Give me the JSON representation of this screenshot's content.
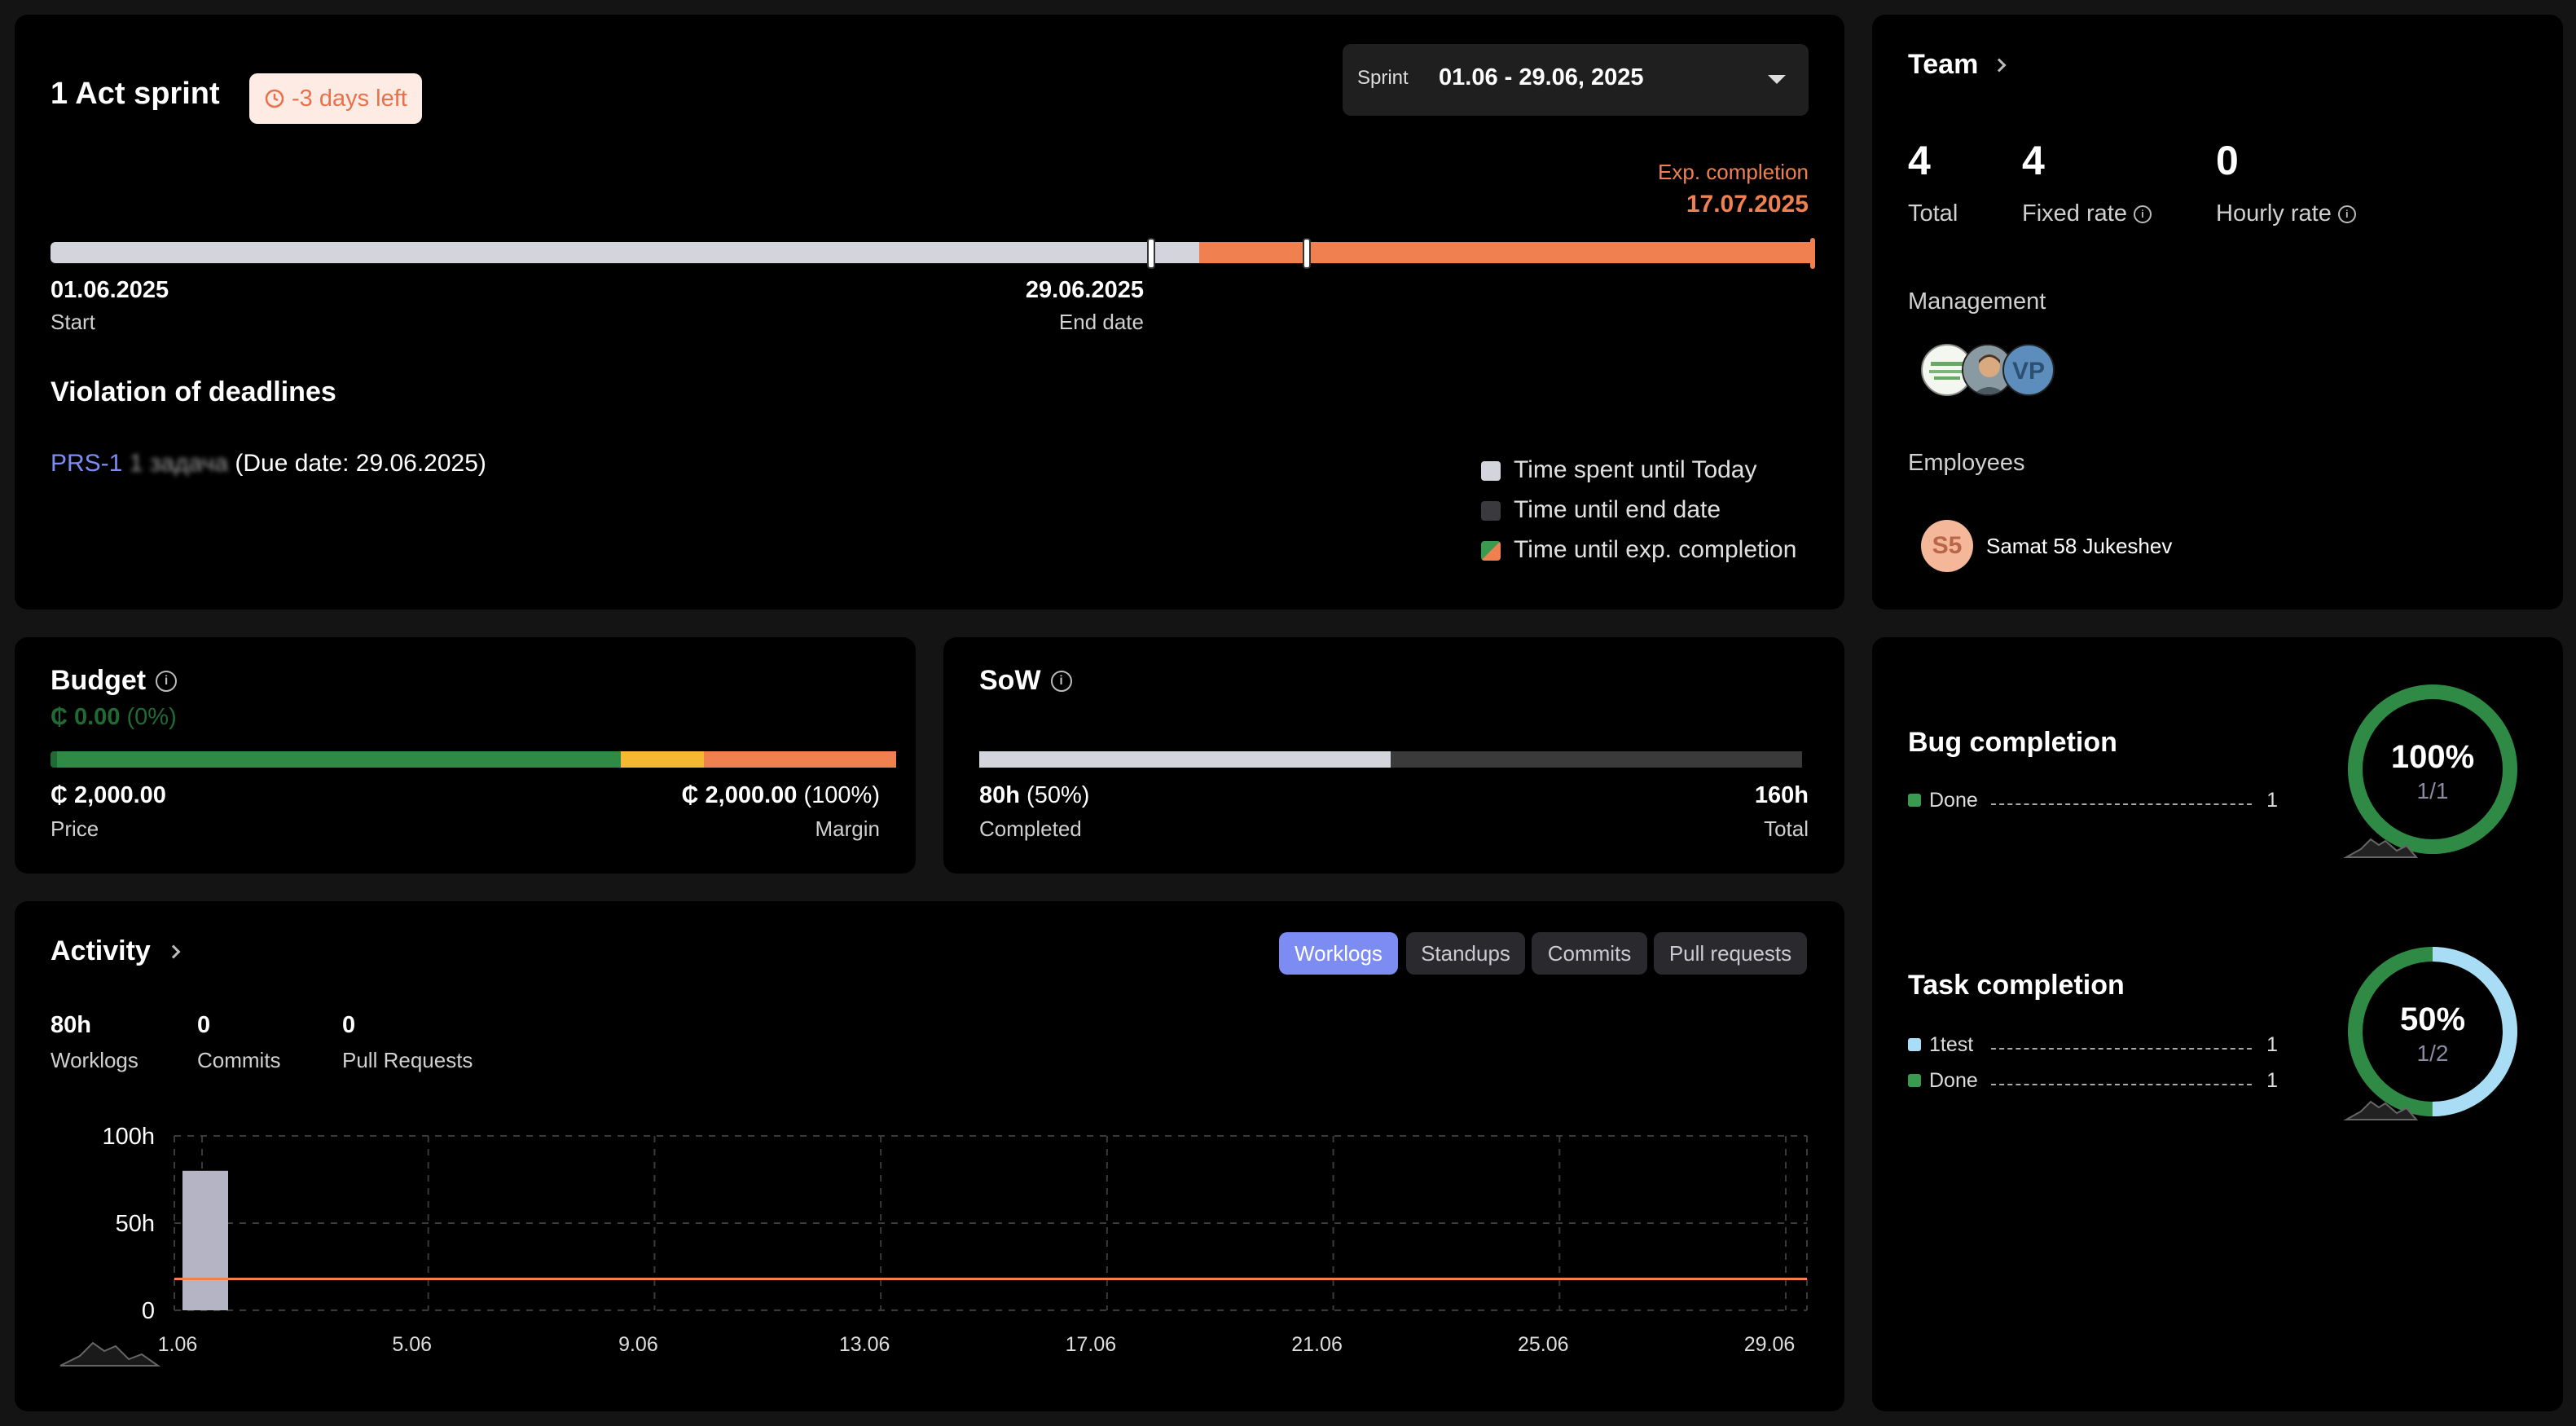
{
  "sprint": {
    "title": "1 Act sprint",
    "days_left_badge": "-3 days left",
    "selector_label": "Sprint",
    "selector_value": "01.06 - 29.06, 2025",
    "exp_completion_label": "Exp. completion",
    "exp_completion_date": "17.07.2025",
    "start_date": "01.06.2025",
    "start_label": "Start",
    "end_date": "29.06.2025",
    "end_label": "End date",
    "violations_title": "Violation of deadlines",
    "violation_key": "PRS-1",
    "violation_name": "1 задача",
    "violation_due": "(Due date: 29.06.2025)",
    "legend": [
      "Time spent until Today",
      "Time until end date",
      "Time until exp. completion"
    ],
    "colors": {
      "spent": "#d4d4dc",
      "remaining": "#3a3a3e",
      "overdue": "#f0804f",
      "badge_bg": "#fdebe4",
      "badge_text": "#e8704a"
    }
  },
  "team": {
    "title": "Team",
    "total": "4",
    "total_label": "Total",
    "fixed": "4",
    "fixed_label": "Fixed rate",
    "hourly": "0",
    "hourly_label": "Hourly rate",
    "management_label": "Management",
    "management_avatars": [
      "logo-avatar",
      "photo-avatar",
      "VP"
    ],
    "employees_label": "Employees",
    "employee_initials": "S5",
    "employee_name": "Samat 58 Jukeshev"
  },
  "budget": {
    "title": "Budget",
    "spent": "₵ 0.00",
    "spent_pct": "(0%)",
    "price": "₵ 2,000.00",
    "price_label": "Price",
    "margin": "₵ 2,000.00",
    "margin_pct": "(100%)",
    "margin_label": "Margin"
  },
  "sow": {
    "title": "SoW",
    "completed": "80h",
    "completed_pct": "(50%)",
    "completed_label": "Completed",
    "total": "160h",
    "total_label": "Total",
    "progress": 0.5
  },
  "activity": {
    "title": "Activity",
    "tabs": [
      "Worklogs",
      "Standups",
      "Commits",
      "Pull requests"
    ],
    "active_tab": "Worklogs",
    "worklogs": "80h",
    "worklogs_label": "Worklogs",
    "commits": "0",
    "commits_label": "Commits",
    "prs": "0",
    "prs_label": "Pull Requests"
  },
  "completion": {
    "bug_title": "Bug completion",
    "bug_items": [
      {
        "label": "Done",
        "count": "1",
        "color": "#3a9a4f"
      }
    ],
    "bug_pct": "100%",
    "bug_ratio": "1/1",
    "bug_fraction": 1.0,
    "task_title": "Task completion",
    "task_items": [
      {
        "label": "1test",
        "count": "1",
        "color": "#a9ddf5"
      },
      {
        "label": "Done",
        "count": "1",
        "color": "#3a9a4f"
      }
    ],
    "task_pct": "50%",
    "task_ratio": "1/2",
    "task_fraction": 0.5
  },
  "chart_data": {
    "type": "bar",
    "categories": [
      "1.06",
      "5.06",
      "9.06",
      "13.06",
      "17.06",
      "21.06",
      "25.06",
      "29.06"
    ],
    "values": [
      80,
      0,
      0,
      0,
      0,
      0,
      0,
      0
    ],
    "y_ticks": [
      "100h",
      "50h",
      "0"
    ],
    "ylim": [
      0,
      100
    ],
    "reference_line": 18,
    "grid": true,
    "colors": {
      "bar": "#b4b4c4",
      "line": "#f0804f"
    }
  }
}
